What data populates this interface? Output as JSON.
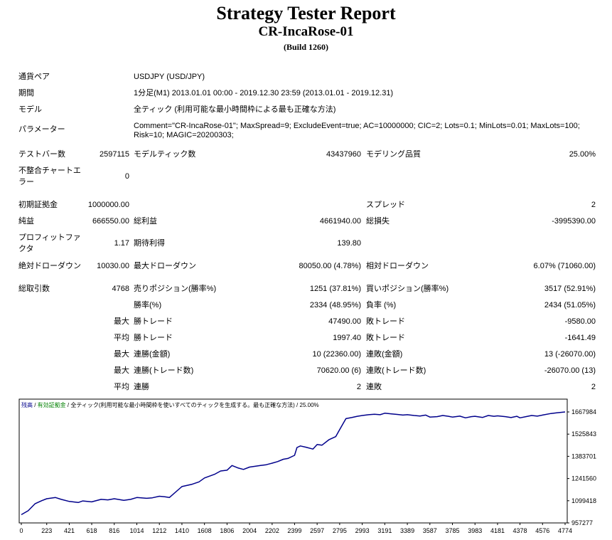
{
  "header": {
    "title": "Strategy Tester Report",
    "ea_name": "CR-IncaRose-01",
    "build": "(Build 1260)"
  },
  "settings": {
    "symbol_label": "通貨ペア",
    "symbol_value": "USDJPY (USD/JPY)",
    "period_label": "期間",
    "period_value": "1分足(M1) 2013.01.01 00:00 - 2019.12.30 23:59 (2013.01.01 - 2019.12.31)",
    "model_label": "モデル",
    "model_value": "全ティック (利用可能な最小時間枠による最も正確な方法)",
    "params_label": "パラメーター",
    "params_value_line1": "Comment=\"CR-IncaRose-01\"; MaxSpread=9; ExcludeEvent=true; AC=10000000; CIC=2; Lots=0.1; MinLots=0.01; MaxLots=100;",
    "params_value_line2": "Risk=10; MAGIC=20200303;"
  },
  "results": {
    "bars_label": "テストバー数",
    "bars_value": "2597115",
    "ticks_label": "モデルティック数",
    "ticks_value": "43437960",
    "quality_label": "モデリング品質",
    "quality_value": "25.00%",
    "mismatch_label_line1": "不整合チャートエ",
    "mismatch_label_line2": "ラー",
    "mismatch_value": "0",
    "deposit_label": "初期証拠金",
    "deposit_value": "1000000.00",
    "spread_label": "スプレッド",
    "spread_value": "2",
    "net_label": "純益",
    "net_value": "666550.00",
    "gross_profit_label": "総利益",
    "gross_profit_value": "4661940.00",
    "gross_loss_label": "総損失",
    "gross_loss_value": "-3995390.00",
    "pf_label_line1": "プロフィットファ",
    "pf_label_line2": "クタ",
    "pf_value": "1.17",
    "expected_label": "期待利得",
    "expected_value": "139.80",
    "abs_dd_label": "絶対ドローダウン",
    "abs_dd_value": "10030.00",
    "max_dd_label": "最大ドローダウン",
    "max_dd_value": "80050.00 (4.78%)",
    "rel_dd_label": "相対ドローダウン",
    "rel_dd_value": "6.07% (71060.00)",
    "trades_label": "総取引数",
    "trades_value": "4768",
    "short_label": "売りポジション(勝率%)",
    "short_value": "1251 (37.81%)",
    "long_label": "買いポジション(勝率%)",
    "long_value": "3517 (52.91%)",
    "win_rate_label": "勝率(%)",
    "win_rate_value": "2334 (48.95%)",
    "loss_rate_label": "負率 (%)",
    "loss_rate_value": "2434 (51.05%)",
    "max_prefix": "最大",
    "avg_prefix": "平均",
    "largest_win_label": "勝トレード",
    "largest_win_value": "47490.00",
    "largest_loss_label": "敗トレード",
    "largest_loss_value": "-9580.00",
    "avg_win_label": "勝トレード",
    "avg_win_value": "1997.40",
    "avg_loss_label": "敗トレード",
    "avg_loss_value": "-1641.49",
    "max_consec_wins_label": "連勝(金額)",
    "max_consec_wins_value": "10 (22360.00)",
    "max_consec_losses_label": "連敗(金額)",
    "max_consec_losses_value": "13 (-26070.00)",
    "max_consec_profit_label": "連勝(トレード数)",
    "max_consec_profit_value": "70620.00 (6)",
    "max_consec_loss_label": "連敗(トレード数)",
    "max_consec_loss_value": "-26070.00 (13)",
    "avg_consec_wins_label": "連勝",
    "avg_consec_wins_value": "2",
    "avg_consec_losses_label": "連敗",
    "avg_consec_losses_value": "2"
  },
  "chart_data": {
    "type": "line",
    "legend": {
      "balance": "残高",
      "sep1": " / ",
      "equity": "有効証拠金",
      "sep2": " / ",
      "model": "全ティック(利用可能な最小時間枠を使いすべてのティックを生成する。最も正確な方法)",
      "sep3": " / ",
      "quality": "25.00%"
    },
    "x_ticks": [
      "0",
      "223",
      "421",
      "618",
      "816",
      "1014",
      "1212",
      "1410",
      "1608",
      "1806",
      "2004",
      "2202",
      "2399",
      "2597",
      "2795",
      "2993",
      "3191",
      "3389",
      "3587",
      "3785",
      "3983",
      "4181",
      "4378",
      "4576",
      "4774"
    ],
    "y_ticks": [
      "1667984",
      "1525843",
      "1383701",
      "1241560",
      "1099418",
      "957277"
    ],
    "xlim": [
      0,
      4774
    ],
    "ylim": [
      957277,
      1667984
    ],
    "series": [
      {
        "color": "#00008b",
        "x": [
          0,
          60,
          120,
          180,
          223,
          300,
          350,
          421,
          500,
          540,
          618,
          700,
          760,
          816,
          900,
          960,
          1014,
          1100,
          1150,
          1212,
          1260,
          1300,
          1410,
          1500,
          1560,
          1608,
          1700,
          1750,
          1806,
          1850,
          1900,
          1950,
          2004,
          2100,
          2150,
          2202,
          2250,
          2300,
          2340,
          2399,
          2420,
          2450,
          2500,
          2560,
          2597,
          2640,
          2700,
          2760,
          2795,
          2850,
          2900,
          2950,
          2993,
          3050,
          3100,
          3150,
          3191,
          3250,
          3300,
          3350,
          3389,
          3450,
          3500,
          3550,
          3587,
          3650,
          3700,
          3750,
          3785,
          3850,
          3900,
          3950,
          3983,
          4050,
          4100,
          4150,
          4181,
          4250,
          4300,
          4350,
          4378,
          4430,
          4480,
          4530,
          4576,
          4650,
          4700,
          4774
        ],
        "y": [
          1010000,
          1035000,
          1080000,
          1100000,
          1112000,
          1120000,
          1108000,
          1095000,
          1088000,
          1098000,
          1092000,
          1108000,
          1105000,
          1112000,
          1102000,
          1108000,
          1120000,
          1115000,
          1118000,
          1128000,
          1125000,
          1120000,
          1190000,
          1205000,
          1220000,
          1245000,
          1270000,
          1290000,
          1295000,
          1325000,
          1310000,
          1300000,
          1315000,
          1325000,
          1330000,
          1340000,
          1350000,
          1365000,
          1370000,
          1390000,
          1440000,
          1450000,
          1442000,
          1430000,
          1460000,
          1455000,
          1490000,
          1510000,
          1555000,
          1625000,
          1632000,
          1640000,
          1645000,
          1650000,
          1653000,
          1650000,
          1660000,
          1655000,
          1652000,
          1648000,
          1650000,
          1645000,
          1642000,
          1648000,
          1635000,
          1638000,
          1645000,
          1640000,
          1635000,
          1641000,
          1630000,
          1638000,
          1640000,
          1633000,
          1645000,
          1640000,
          1643000,
          1638000,
          1632000,
          1640000,
          1630000,
          1638000,
          1645000,
          1641000,
          1648000,
          1658000,
          1662000,
          1668000
        ]
      }
    ]
  }
}
